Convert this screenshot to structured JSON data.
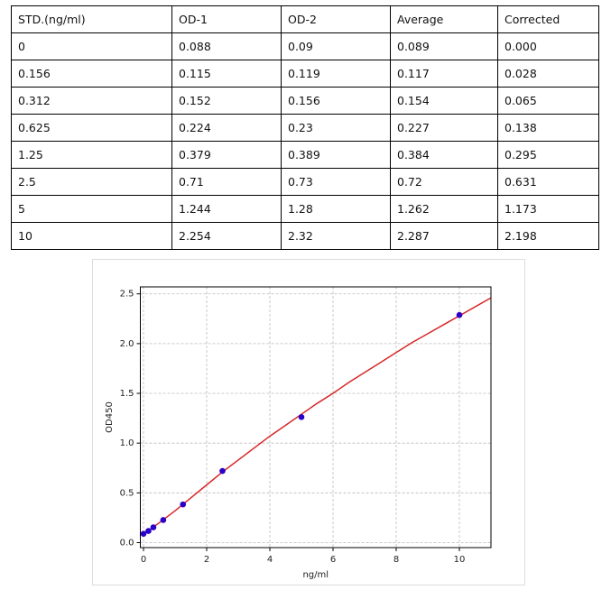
{
  "table": {
    "header": [
      "STD.(ng/ml)",
      "OD-1",
      "OD-2",
      "Average",
      "Corrected"
    ],
    "rows": [
      [
        "0",
        "0.088",
        "0.09",
        "0.089",
        "0.000"
      ],
      [
        "0.156",
        "0.115",
        "0.119",
        "0.117",
        "0.028"
      ],
      [
        "0.312",
        "0.152",
        "0.156",
        "0.154",
        "0.065"
      ],
      [
        "0.625",
        "0.224",
        "0.23",
        "0.227",
        "0.138"
      ],
      [
        "1.25",
        "0.379",
        "0.389",
        "0.384",
        "0.295"
      ],
      [
        "2.5",
        "0.71",
        "0.73",
        "0.72",
        "0.631"
      ],
      [
        "5",
        "1.244",
        "1.28",
        "1.262",
        "1.173"
      ],
      [
        "10",
        "2.254",
        "2.32",
        "2.287",
        "2.198"
      ]
    ]
  },
  "chart_data": {
    "type": "scatter",
    "xlabel": "ng/ml",
    "ylabel": "OD450",
    "grid": true,
    "xlim": [
      -0.1,
      11
    ],
    "ylim": [
      -0.05,
      2.57
    ],
    "xticks": [
      0,
      2,
      4,
      6,
      8,
      10
    ],
    "yticks": [
      {
        "value": 0,
        "label": "0.0"
      },
      {
        "value": 0.5,
        "label": "0.5"
      },
      {
        "value": 1,
        "label": "1.0"
      },
      {
        "value": 1.5,
        "label": "1.5"
      },
      {
        "value": 2,
        "label": "2.0"
      },
      {
        "value": 2.5,
        "label": "2.5"
      }
    ],
    "series": [
      {
        "mode": "markers",
        "color": "#2a00c8",
        "x": [
          0,
          0.156,
          0.312,
          0.625,
          1.25,
          2.5,
          5,
          10
        ],
        "values": [
          0.089,
          0.117,
          0.154,
          0.227,
          0.384,
          0.72,
          1.262,
          2.287
        ]
      },
      {
        "mode": "line",
        "color": "#d62728",
        "x": [
          0,
          0.5,
          1,
          1.5,
          2,
          2.5,
          3,
          3.5,
          4,
          4.5,
          5,
          5.5,
          6,
          6.5,
          7,
          7.5,
          8,
          8.5,
          9,
          9.5,
          10,
          10.5,
          11
        ],
        "values": [
          0.085,
          0.2,
          0.32,
          0.45,
          0.58,
          0.71,
          0.83,
          0.95,
          1.07,
          1.18,
          1.29,
          1.4,
          1.5,
          1.61,
          1.71,
          1.81,
          1.91,
          2.01,
          2.1,
          2.19,
          2.28,
          2.37,
          2.46
        ]
      }
    ]
  }
}
